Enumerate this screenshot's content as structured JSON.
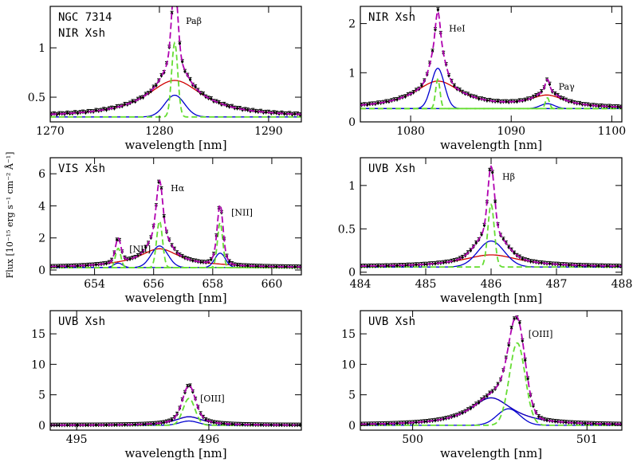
{
  "figure": {
    "ylabel": "Flux [10⁻¹⁵ erg s⁻¹ cm⁻² Å⁻¹]",
    "colors": {
      "data": "#000000",
      "total_fit": "#b000b0",
      "broad": "#d00000",
      "components": "#0000d0",
      "narrow": "#66dd33"
    }
  },
  "chart_data": [
    {
      "type": "line",
      "panel_texts": [
        "NGC 7314",
        "NIR Xsh"
      ],
      "xlabel": "wavelength [nm]",
      "xlim": [
        1270,
        1293
      ],
      "ylim": [
        0.25,
        1.42
      ],
      "xticks": [
        1270,
        1280,
        1290
      ],
      "yticks": [
        0.5,
        1
      ],
      "ytick_labels": [
        "0.5",
        "1"
      ],
      "continuum": 0.3,
      "lines": [
        {
          "label": "Paβ",
          "center": 1281.4,
          "peak_obs": 1.36,
          "broad_amp": 0.37,
          "broad_width": 3.2,
          "comp_amp": 0.22,
          "comp_width": 0.9,
          "narrow_amp": 0.75,
          "narrow_width": 0.28
        }
      ]
    },
    {
      "type": "line",
      "panel_texts": [
        "NIR Xsh"
      ],
      "xlabel": "wavelength [nm]",
      "xlim": [
        1075,
        1101
      ],
      "ylim": [
        0,
        2.35
      ],
      "xticks": [
        1080,
        1090,
        1100
      ],
      "yticks": [
        0,
        1,
        2
      ],
      "ytick_labels": [
        "0",
        "1",
        "2"
      ],
      "continuum": 0.27,
      "lines": [
        {
          "label": "HeI",
          "center": 1082.7,
          "peak_obs": 2.0,
          "broad_amp": 0.55,
          "broad_width": 2.9,
          "comp_amp": 0.82,
          "comp_width": 0.65,
          "narrow_amp": 0.6,
          "narrow_width": 0.22
        },
        {
          "label": "Paγ",
          "center": 1093.6,
          "peak_obs": 0.82,
          "broad_amp": 0.24,
          "broad_width": 2.2,
          "comp_amp": 0.1,
          "comp_width": 0.7,
          "narrow_amp": 0.22,
          "narrow_width": 0.2
        }
      ]
    },
    {
      "type": "line",
      "panel_texts": [
        "VIS Xsh"
      ],
      "xlabel": "wavelength [nm]",
      "xlim": [
        652.5,
        661
      ],
      "ylim": [
        -0.3,
        7
      ],
      "xticks": [
        654,
        656,
        658,
        660
      ],
      "yticks": [
        0,
        2,
        4,
        6
      ],
      "ytick_labels": [
        "0",
        "2",
        "4",
        "6"
      ],
      "continuum": 0.15,
      "lines": [
        {
          "label": "[NII]",
          "center": 654.8,
          "peak_obs": 1.6,
          "broad_amp": 0.05,
          "broad_width": 0.9,
          "comp_amp": 0.28,
          "comp_width": 0.15,
          "narrow_amp": 1.2,
          "narrow_width": 0.09
        },
        {
          "label": "Hα",
          "center": 656.2,
          "peak_obs": 5.4,
          "broad_amp": 1.15,
          "broad_width": 0.85,
          "comp_amp": 1.35,
          "comp_width": 0.28,
          "narrow_amp": 2.9,
          "narrow_width": 0.1
        },
        {
          "label": "[NII]",
          "center": 658.25,
          "peak_obs": 3.9,
          "broad_amp": 0.05,
          "broad_width": 0.9,
          "comp_amp": 0.9,
          "comp_width": 0.18,
          "narrow_amp": 2.8,
          "narrow_width": 0.09
        }
      ]
    },
    {
      "type": "line",
      "panel_texts": [
        "UVB Xsh"
      ],
      "xlabel": "wavelength [nm]",
      "xlim": [
        484,
        488
      ],
      "ylim": [
        -0.03,
        1.32
      ],
      "xticks": [
        484,
        485,
        486,
        487,
        488
      ],
      "yticks": [
        0,
        0.5,
        1
      ],
      "ytick_labels": [
        "0",
        "0.5",
        "1"
      ],
      "continuum": 0.06,
      "lines": [
        {
          "label": "Hβ",
          "center": 486.0,
          "peak_obs": 1.16,
          "broad_amp": 0.14,
          "broad_width": 0.55,
          "comp_amp": 0.3,
          "comp_width": 0.2,
          "narrow_amp": 0.72,
          "narrow_width": 0.05
        }
      ]
    },
    {
      "type": "line",
      "panel_texts": [
        "UVB Xsh"
      ],
      "xlabel": "wavelength [nm]",
      "xlim": [
        494.8,
        496.7
      ],
      "ylim": [
        -0.8,
        18.8
      ],
      "xticks": [
        495,
        496
      ],
      "yticks": [
        0,
        5,
        10,
        15
      ],
      "ytick_labels": [
        "0",
        "5",
        "10",
        "15"
      ],
      "continuum": 0.0,
      "lines": [
        {
          "label": "[OIII]",
          "center": 495.85,
          "peak_obs": 5.2,
          "broad_amp": 1.4,
          "broad_width": 0.13,
          "comp_amp": 0.7,
          "comp_width": 0.07,
          "narrow_amp": 4.4,
          "narrow_width": 0.045
        }
      ]
    },
    {
      "type": "line",
      "panel_texts": [
        "UVB Xsh"
      ],
      "xlabel": "wavelength [nm]",
      "xlim": [
        499.7,
        501.2
      ],
      "ylim": [
        -0.8,
        18.8
      ],
      "xticks": [
        500,
        501
      ],
      "yticks": [
        0,
        5,
        10,
        15
      ],
      "ytick_labels": [
        "0",
        "5",
        "10",
        "15"
      ],
      "continuum": 0.0,
      "lines": [
        {
          "label": "[OIII]",
          "center": 500.6,
          "peak_obs": 15.8,
          "broad_amp": 4.5,
          "broad_width": 0.15,
          "comp_amp": 2.7,
          "comp_width": 0.065,
          "narrow_amp": 13.5,
          "narrow_width": 0.045,
          "broad_center": 500.45,
          "comp_center": 500.55
        }
      ]
    }
  ]
}
